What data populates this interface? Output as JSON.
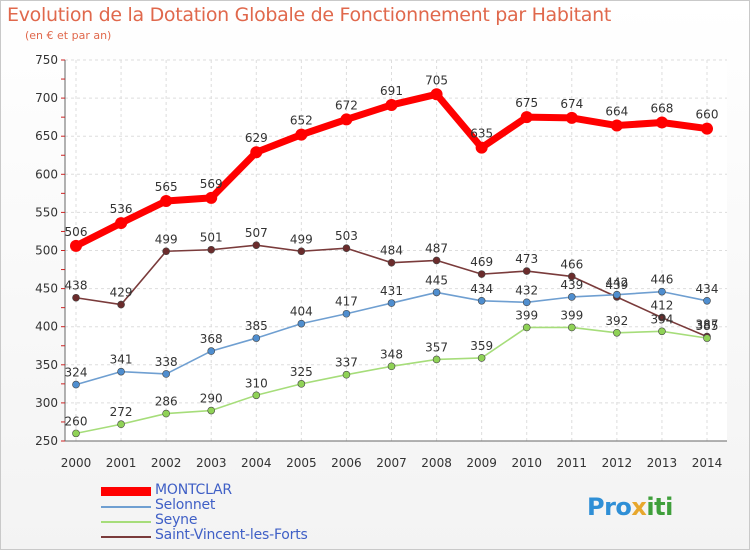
{
  "header": {
    "title": "Evolution de la Dotation Globale de Fonctionnement par Habitant",
    "subtitle": "(en € et par an)"
  },
  "logo": {
    "part1": "Pro",
    "part2": "x",
    "part3": "iti"
  },
  "chart_data": {
    "type": "line",
    "title": "Evolution de la Dotation Globale de Fonctionnement par Habitant",
    "subtitle": "(en € et par an)",
    "xlabel": "",
    "ylabel": "",
    "x": [
      "2000",
      "2001",
      "2002",
      "2003",
      "2004",
      "2005",
      "2006",
      "2007",
      "2008",
      "2009",
      "2010",
      "2011",
      "2012",
      "2013",
      "2014"
    ],
    "ylim": [
      250,
      750
    ],
    "yticks": [
      250,
      300,
      350,
      400,
      450,
      500,
      550,
      600,
      650,
      700,
      750
    ],
    "grid": true,
    "legend_position": "bottom-left",
    "series": [
      {
        "name": "MONTCLAR",
        "color": "#ff0000",
        "marker_color": "#ff0000",
        "values": [
          506,
          536,
          565,
          569,
          629,
          652,
          672,
          691,
          705,
          635,
          675,
          674,
          664,
          668,
          660
        ]
      },
      {
        "name": "Selonnet",
        "color": "#6f9fd1",
        "marker_color": "#4f8ecf",
        "values": [
          324,
          341,
          338,
          368,
          385,
          404,
          417,
          431,
          445,
          434,
          432,
          439,
          442,
          446,
          434
        ]
      },
      {
        "name": "Seyne",
        "color": "#a6dd7a",
        "marker_color": "#8fd256",
        "values": [
          260,
          272,
          286,
          290,
          310,
          325,
          337,
          348,
          357,
          359,
          399,
          399,
          392,
          394,
          385
        ]
      },
      {
        "name": "Saint-Vincent-les-Forts",
        "color": "#7a3b3b",
        "marker_color": "#6b2c2c",
        "values": [
          438,
          429,
          499,
          501,
          507,
          499,
          503,
          484,
          487,
          469,
          473,
          466,
          439,
          412,
          387
        ]
      }
    ]
  }
}
